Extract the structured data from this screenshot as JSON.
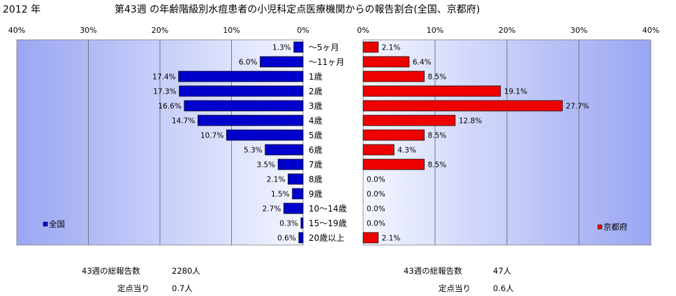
{
  "header": {
    "year": "2012 年",
    "title": "第43週 の年齢階級別水痘患者の小児科定点医療機関からの報告割合(全国、京都府)"
  },
  "chart_data": [
    {
      "type": "bar",
      "orientation": "horizontal",
      "direction": "right-to-left",
      "name": "全国",
      "legend": "全国",
      "legend_position": "bottom-left",
      "color": "#0000cc",
      "xlim": [
        0,
        40
      ],
      "xticks": [
        "40%",
        "30%",
        "20%",
        "10%",
        "0%"
      ],
      "grid": true,
      "categories": [
        "～5ヶ月",
        "～11ヶ月",
        "1歳",
        "2歳",
        "3歳",
        "4歳",
        "5歳",
        "6歳",
        "7歳",
        "8歳",
        "9歳",
        "10～14歳",
        "15～19歳",
        "20歳以上"
      ],
      "values": [
        1.3,
        6.0,
        17.4,
        17.3,
        16.6,
        14.7,
        10.7,
        5.3,
        3.5,
        2.1,
        1.5,
        2.7,
        0.3,
        0.6
      ],
      "labels": [
        "1.3%",
        "6.0%",
        "17.4%",
        "17.3%",
        "16.6%",
        "14.7%",
        "10.7%",
        "5.3%",
        "3.5%",
        "2.1%",
        "1.5%",
        "2.7%",
        "0.3%",
        "0.6%"
      ]
    },
    {
      "type": "bar",
      "orientation": "horizontal",
      "direction": "left-to-right",
      "name": "京都府",
      "legend": "京都府",
      "legend_position": "bottom-right",
      "color": "#ee0000",
      "xlim": [
        0,
        40
      ],
      "xticks": [
        "0%",
        "10%",
        "20%",
        "30%",
        "40%"
      ],
      "grid": true,
      "categories": [
        "～5ヶ月",
        "～11ヶ月",
        "1歳",
        "2歳",
        "3歳",
        "4歳",
        "5歳",
        "6歳",
        "7歳",
        "8歳",
        "9歳",
        "10～14歳",
        "15～19歳",
        "20歳以上"
      ],
      "values": [
        2.1,
        6.4,
        8.5,
        19.1,
        27.7,
        12.8,
        8.5,
        4.3,
        8.5,
        0.0,
        0.0,
        0.0,
        0.0,
        2.1
      ],
      "labels": [
        "2.1%",
        "6.4%",
        "8.5%",
        "19.1%",
        "27.7%",
        "12.8%",
        "8.5%",
        "4.3%",
        "8.5%",
        "0.0%",
        "0.0%",
        "0.0%",
        "0.0%",
        "2.1%"
      ]
    }
  ],
  "stats": {
    "national": {
      "total_label": "43週の総報告数",
      "total_value": "2280人",
      "per_label": "定点当り",
      "per_value": "0.7人"
    },
    "kyoto": {
      "total_label": "43週の総報告数",
      "total_value": "47人",
      "per_label": "定点当り",
      "per_value": "0.6人"
    }
  }
}
